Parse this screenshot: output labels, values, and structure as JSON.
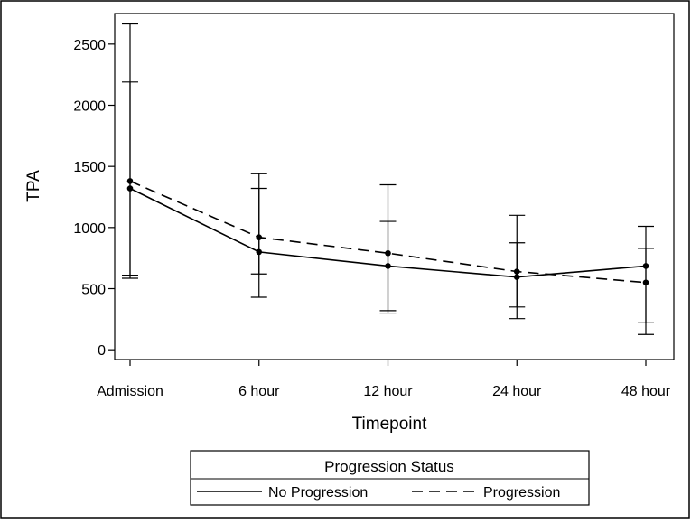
{
  "chart_data": {
    "type": "line",
    "xlabel": "Timepoint",
    "ylabel": "TPA",
    "categories": [
      "Admission",
      "6 hour",
      "12 hour",
      "24 hour",
      "48 hour"
    ],
    "ylim": [
      -80,
      2750
    ],
    "yticks": [
      0,
      500,
      1000,
      1500,
      2000,
      2500
    ],
    "grid": false,
    "legend": {
      "title": "Progression Status",
      "placement": "bottom"
    },
    "series": [
      {
        "name": "No Progression",
        "dash": "solid",
        "color": "#000000",
        "values": [
          1320,
          800,
          685,
          595,
          685
        ],
        "lower": [
          610,
          430,
          320,
          350,
          220
        ],
        "upper": [
          2190,
          1320,
          1050,
          875,
          830
        ]
      },
      {
        "name": "Progression",
        "dash": "dashed",
        "color": "#000000",
        "values": [
          1380,
          920,
          790,
          640,
          550
        ],
        "lower": [
          585,
          620,
          300,
          255,
          125
        ],
        "upper": [
          2665,
          1440,
          1350,
          1100,
          1010
        ]
      }
    ]
  }
}
